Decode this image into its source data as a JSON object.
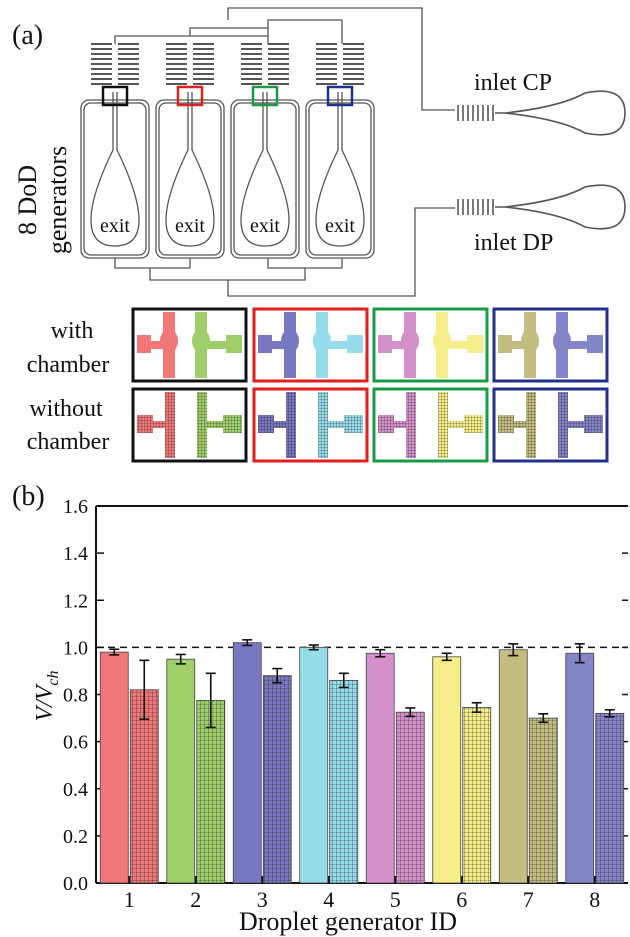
{
  "panels": {
    "a": "(a)",
    "b": "(b)"
  },
  "schematic": {
    "generators_label_line1": "8 DoD",
    "generators_label_line2": "generators",
    "exit_label": "exit",
    "inlet_cp": "inlet CP",
    "inlet_dp": "inlet DP",
    "box_colors": [
      "#111111",
      "#e0201e",
      "#1a9a46",
      "#23308e"
    ],
    "row_with_line1": "with",
    "row_with_line2": "chamber",
    "row_without_line1": "without",
    "row_without_line2": "chamber"
  },
  "colors": {
    "c1": "#f07878",
    "c2": "#9fce6a",
    "c3": "#7878c0",
    "c4": "#96dceb",
    "c5": "#d490c8",
    "c6": "#f5ee8a",
    "c7": "#c3bd82",
    "c8": "#8484c8"
  },
  "chart_data": {
    "type": "bar",
    "categories": [
      "1",
      "2",
      "3",
      "4",
      "5",
      "6",
      "7",
      "8"
    ],
    "series": [
      {
        "values": [
          0.98,
          0.95,
          1.02,
          1.0,
          0.975,
          0.96,
          0.99,
          0.975
        ],
        "errors": [
          0.012,
          0.02,
          0.012,
          0.01,
          0.015,
          0.015,
          0.025,
          0.04
        ]
      },
      {
        "values": [
          0.82,
          0.775,
          0.88,
          0.86,
          0.725,
          0.745,
          0.7,
          0.72
        ],
        "errors": [
          0.125,
          0.115,
          0.03,
          0.03,
          0.018,
          0.02,
          0.018,
          0.015
        ]
      }
    ],
    "bar_colors": [
      "#f07878",
      "#9fce6a",
      "#7878c0",
      "#96dceb",
      "#d490c8",
      "#f5ee8a",
      "#c3bd82",
      "#8484c8"
    ],
    "xlabel": "Droplet generator ID",
    "ylabel_main": "V/V",
    "ylabel_sub": "ch",
    "ylim": [
      0.0,
      1.6
    ],
    "yticks": [
      "0.0",
      "0.2",
      "0.4",
      "0.6",
      "0.8",
      "1.0",
      "1.2",
      "1.4",
      "1.6"
    ],
    "reference_line": 1.0,
    "grid": false
  }
}
